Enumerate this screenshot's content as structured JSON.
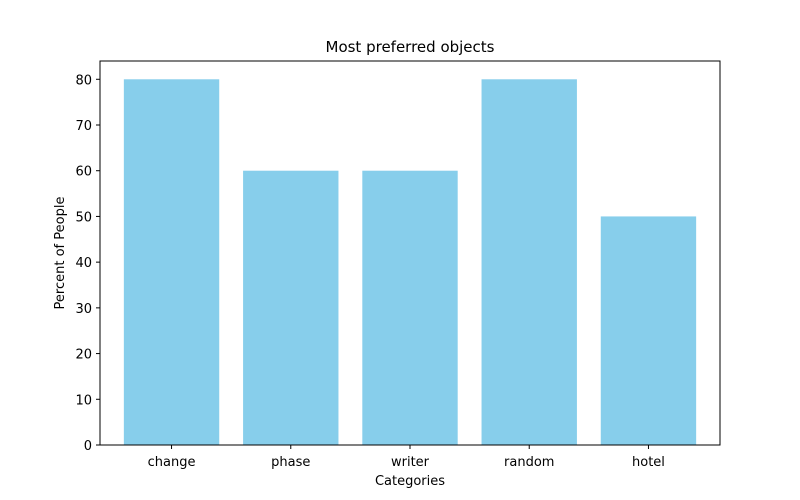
{
  "chart_data": {
    "type": "bar",
    "title": "Most preferred objects",
    "xlabel": "Categories",
    "ylabel": "Percent of People",
    "categories": [
      "change",
      "phase",
      "writer",
      "random",
      "hotel"
    ],
    "values": [
      80,
      60,
      60,
      80,
      50
    ],
    "ylim": [
      0,
      84
    ],
    "yticks": [
      0,
      10,
      20,
      30,
      40,
      50,
      60,
      70,
      80
    ],
    "grid": false,
    "legend": "none",
    "colors": {
      "bar": "#87CEEB",
      "axis": "#000000",
      "background": "#ffffff"
    }
  }
}
